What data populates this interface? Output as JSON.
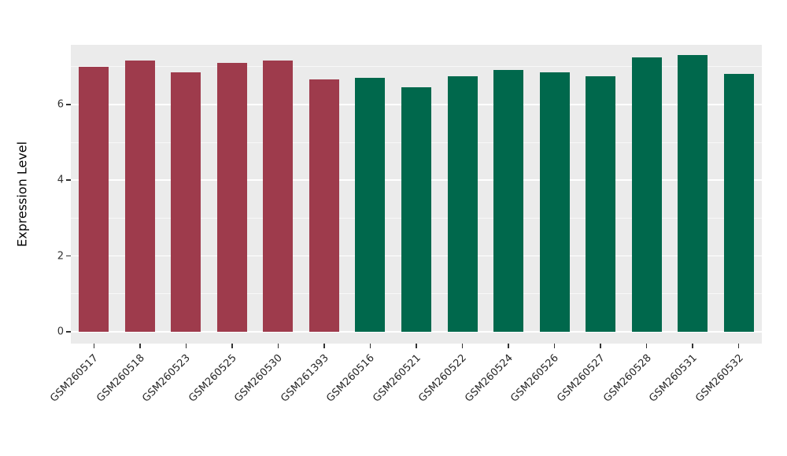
{
  "chart_data": {
    "type": "bar",
    "title": "",
    "xlabel": "",
    "ylabel": "Expression Level",
    "ylim": [
      0,
      7.57
    ],
    "yticks": [
      0,
      2,
      4,
      6
    ],
    "minor_gridlines": [
      1,
      3,
      5,
      7
    ],
    "grid": "on",
    "legend_position": "none",
    "panel_background": "#EBEBEB",
    "grid_color": "#FFFFFF",
    "group_colors": {
      "group_a": "#9E3B4C",
      "group_b": "#00684C"
    },
    "categories": [
      "GSM260517",
      "GSM260518",
      "GSM260523",
      "GSM260525",
      "GSM260530",
      "GSM261393",
      "GSM260516",
      "GSM260521",
      "GSM260522",
      "GSM260524",
      "GSM260526",
      "GSM260527",
      "GSM260528",
      "GSM260531",
      "GSM260532"
    ],
    "values": [
      7.0,
      7.15,
      6.85,
      7.1,
      7.15,
      6.65,
      6.7,
      6.45,
      6.75,
      6.9,
      6.85,
      6.75,
      7.25,
      7.3,
      6.8
    ],
    "bar_colors": [
      "#9E3B4C",
      "#9E3B4C",
      "#9E3B4C",
      "#9E3B4C",
      "#9E3B4C",
      "#9E3B4C",
      "#00684C",
      "#00684C",
      "#00684C",
      "#00684C",
      "#00684C",
      "#00684C",
      "#00684C",
      "#00684C",
      "#00684C"
    ]
  }
}
